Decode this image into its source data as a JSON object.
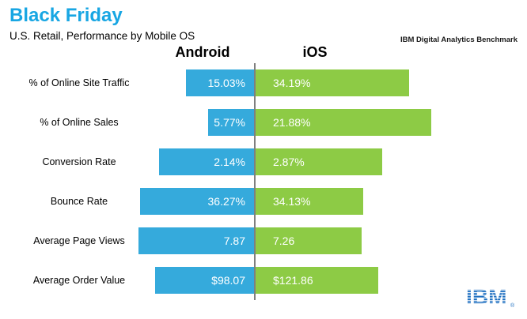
{
  "header": {
    "title": "Black Friday",
    "subtitle": "U.S. Retail, Performance by Mobile OS",
    "benchmark_label": "IBM Digital Analytics Benchmark"
  },
  "columns": {
    "android_header": "Android",
    "ios_header": "iOS"
  },
  "footer": {
    "logo_text": "IBM",
    "registered_mark": "®"
  },
  "colors": {
    "title": "#18A6E3",
    "android_bar": "#35AADC",
    "ios_bar": "#8DCB45",
    "bar_text": "#FFFFFF",
    "divider": "#7F7F7F",
    "ibm_blue": "#1F70C1"
  },
  "chart_data": {
    "type": "bar",
    "subtype": "horizontal-diverging-paired",
    "title": "Black Friday",
    "subtitle": "U.S. Retail, Performance by Mobile OS",
    "categories": [
      "% of Online Site Traffic",
      "% of Online Sales",
      "Conversion Rate",
      "Bounce Rate",
      "Average Page Views",
      "Average Order Value"
    ],
    "series": [
      {
        "name": "Android",
        "values": [
          15.03,
          5.77,
          2.14,
          36.27,
          7.87,
          98.07
        ],
        "labels": [
          "15.03%",
          "5.77%",
          "2.14%",
          "36.27%",
          "7.87",
          "$98.07"
        ],
        "color": "#35AADC",
        "direction": "left-of-axis"
      },
      {
        "name": "iOS",
        "values": [
          34.19,
          21.88,
          2.87,
          34.13,
          7.26,
          121.86
        ],
        "labels": [
          "34.19%",
          "21.88%",
          "2.87%",
          "34.13%",
          "7.26",
          "$121.86"
        ],
        "color": "#8DCB45",
        "direction": "right-of-axis"
      }
    ],
    "normalization": "each category row scaled so Android+iOS bar lengths fill a constant total width",
    "value_labels": "inside bars, white",
    "legend_position": "column headers above chart",
    "grid": false
  }
}
